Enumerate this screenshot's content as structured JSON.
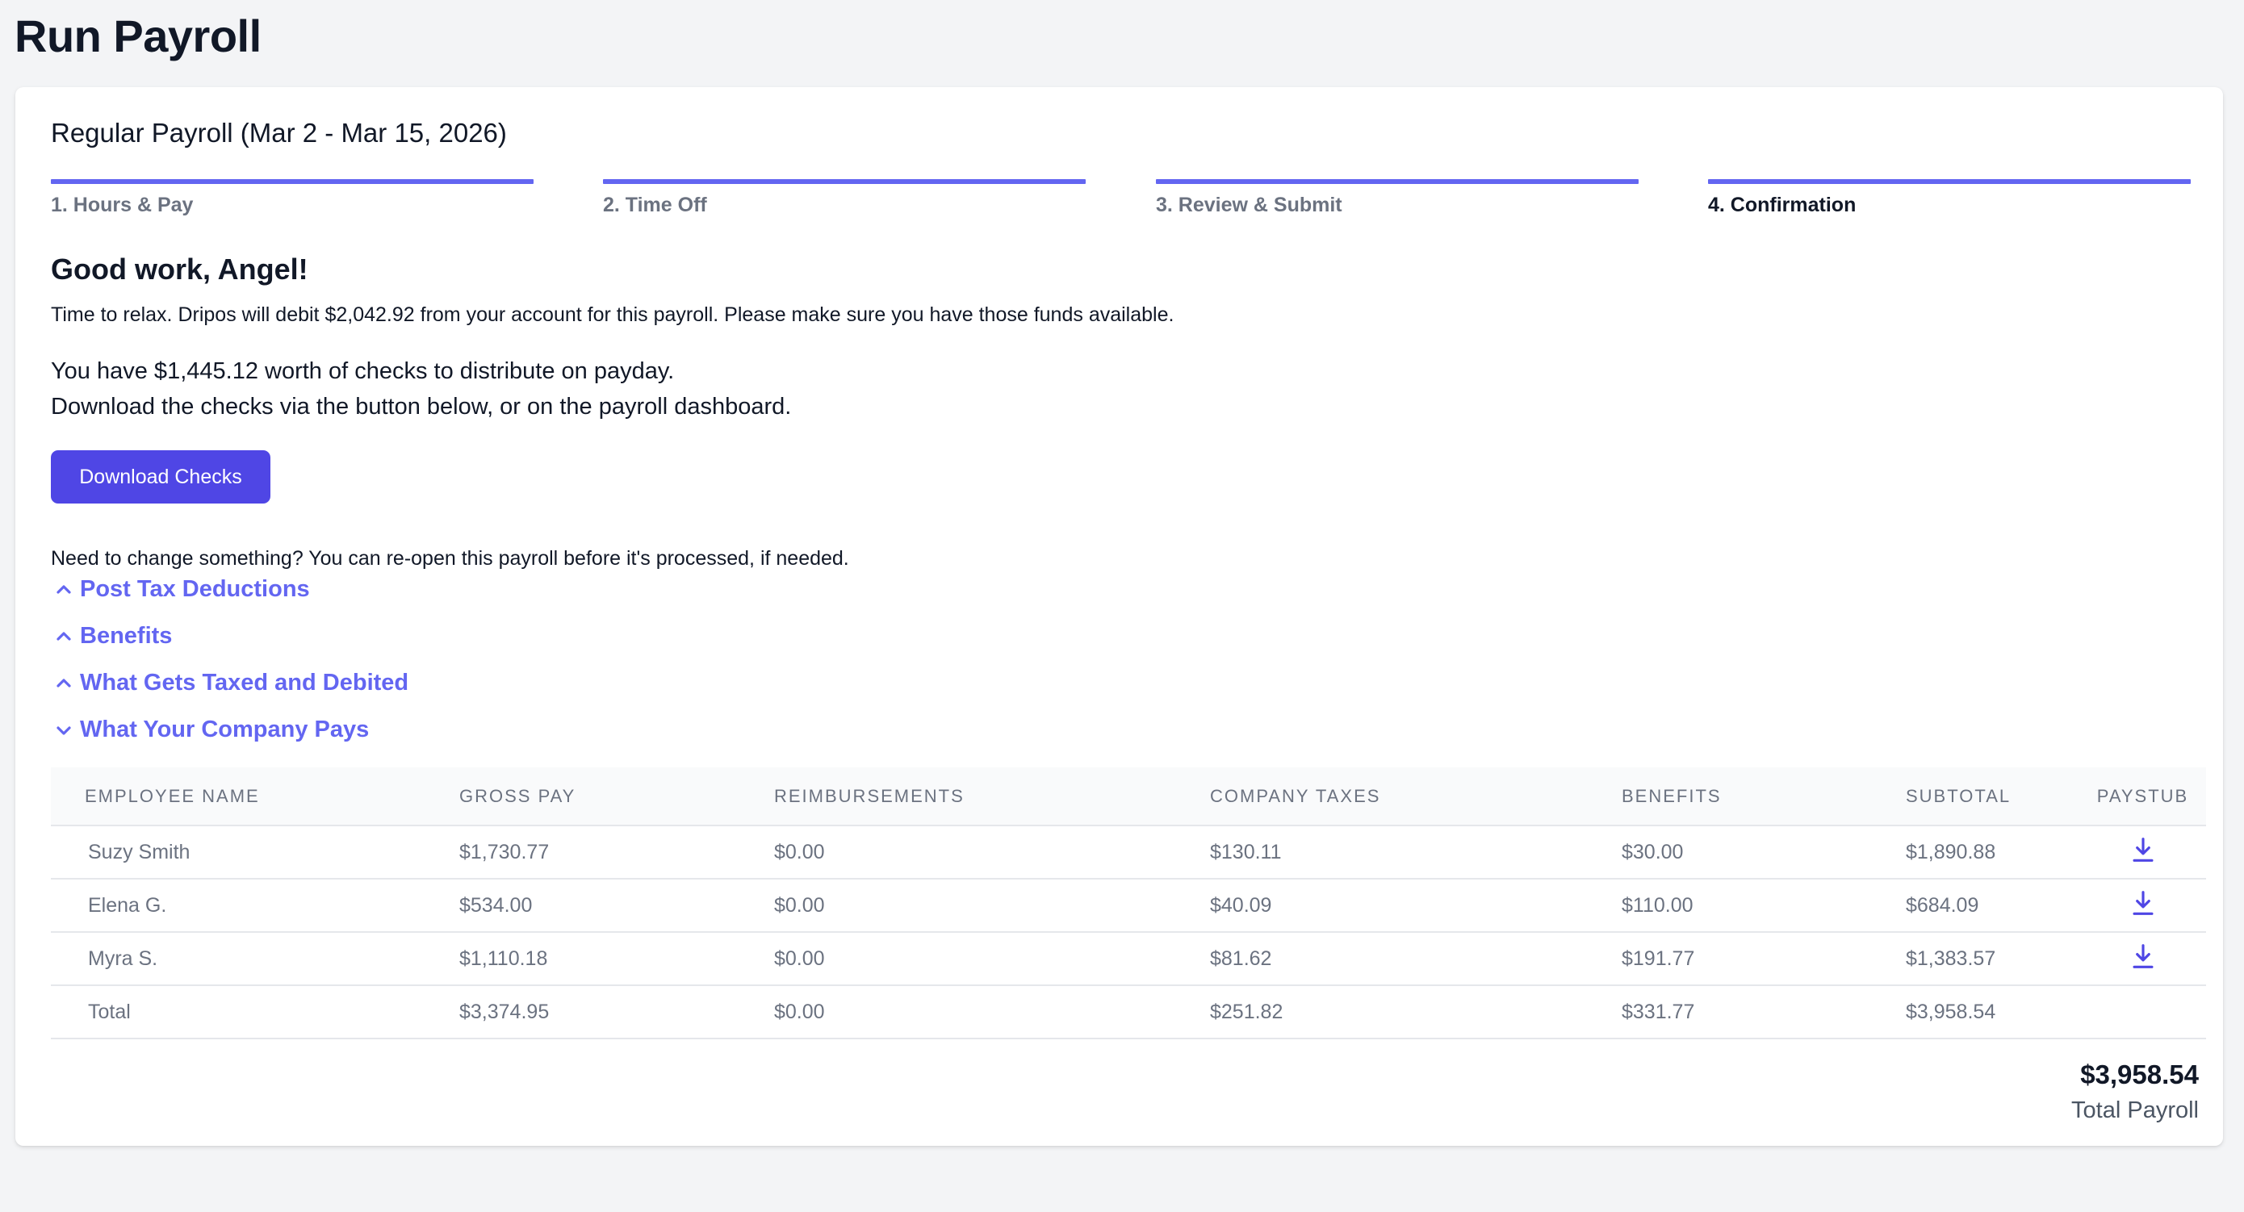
{
  "page": {
    "title": "Run Payroll"
  },
  "payroll": {
    "title": "Regular Payroll (Mar 2 - Mar 15, 2026)"
  },
  "steps": [
    {
      "label": "1. Hours & Pay",
      "active": false
    },
    {
      "label": "2. Time Off",
      "active": false
    },
    {
      "label": "3. Review & Submit",
      "active": false
    },
    {
      "label": "4. Confirmation",
      "active": true
    }
  ],
  "confirmation": {
    "greeting": "Good work, Angel!",
    "debit_text": "Time to relax. Dripos will debit $2,042.92 from your account for this payroll. Please make sure you have those funds available.",
    "checks_line1": "You have $1,445.12 worth of checks to distribute on payday.",
    "checks_line2": "Download the checks via the button below, or on the payroll dashboard.",
    "download_button": "Download Checks",
    "reopen_text": "Need to change something? You can re-open this payroll before it's processed, if needed."
  },
  "sections": [
    {
      "label": "Post Tax Deductions",
      "expanded": false,
      "icon": "chevron-up-icon"
    },
    {
      "label": "Benefits",
      "expanded": false,
      "icon": "chevron-up-icon"
    },
    {
      "label": "What Gets Taxed and Debited",
      "expanded": false,
      "icon": "chevron-up-icon"
    },
    {
      "label": "What Your Company Pays",
      "expanded": true,
      "icon": "chevron-down-icon"
    }
  ],
  "company_pays_table": {
    "columns": [
      "EMPLOYEE NAME",
      "GROSS PAY",
      "REIMBURSEMENTS",
      "COMPANY TAXES",
      "BENEFITS",
      "SUBTOTAL",
      "PAYSTUB"
    ],
    "rows": [
      {
        "name": "Suzy Smith",
        "gross": "$1,730.77",
        "reimb": "$0.00",
        "taxes": "$130.11",
        "benefits": "$30.00",
        "subtotal": "$1,890.88",
        "paystub_icon": "download-icon"
      },
      {
        "name": "Elena G.",
        "gross": "$534.00",
        "reimb": "$0.00",
        "taxes": "$40.09",
        "benefits": "$110.00",
        "subtotal": "$684.09",
        "paystub_icon": "download-icon"
      },
      {
        "name": "Myra S.",
        "gross": "$1,110.18",
        "reimb": "$0.00",
        "taxes": "$81.62",
        "benefits": "$191.77",
        "subtotal": "$1,383.57",
        "paystub_icon": "download-icon"
      },
      {
        "name": "Total",
        "gross": "$3,374.95",
        "reimb": "$0.00",
        "taxes": "$251.82",
        "benefits": "$331.77",
        "subtotal": "$3,958.54",
        "paystub_icon": ""
      }
    ]
  },
  "summary": {
    "total_amount": "$3,958.54",
    "total_label": "Total Payroll"
  },
  "colors": {
    "accent": "#6366f1",
    "button": "#4f46e5",
    "background": "#f3f4f6"
  }
}
